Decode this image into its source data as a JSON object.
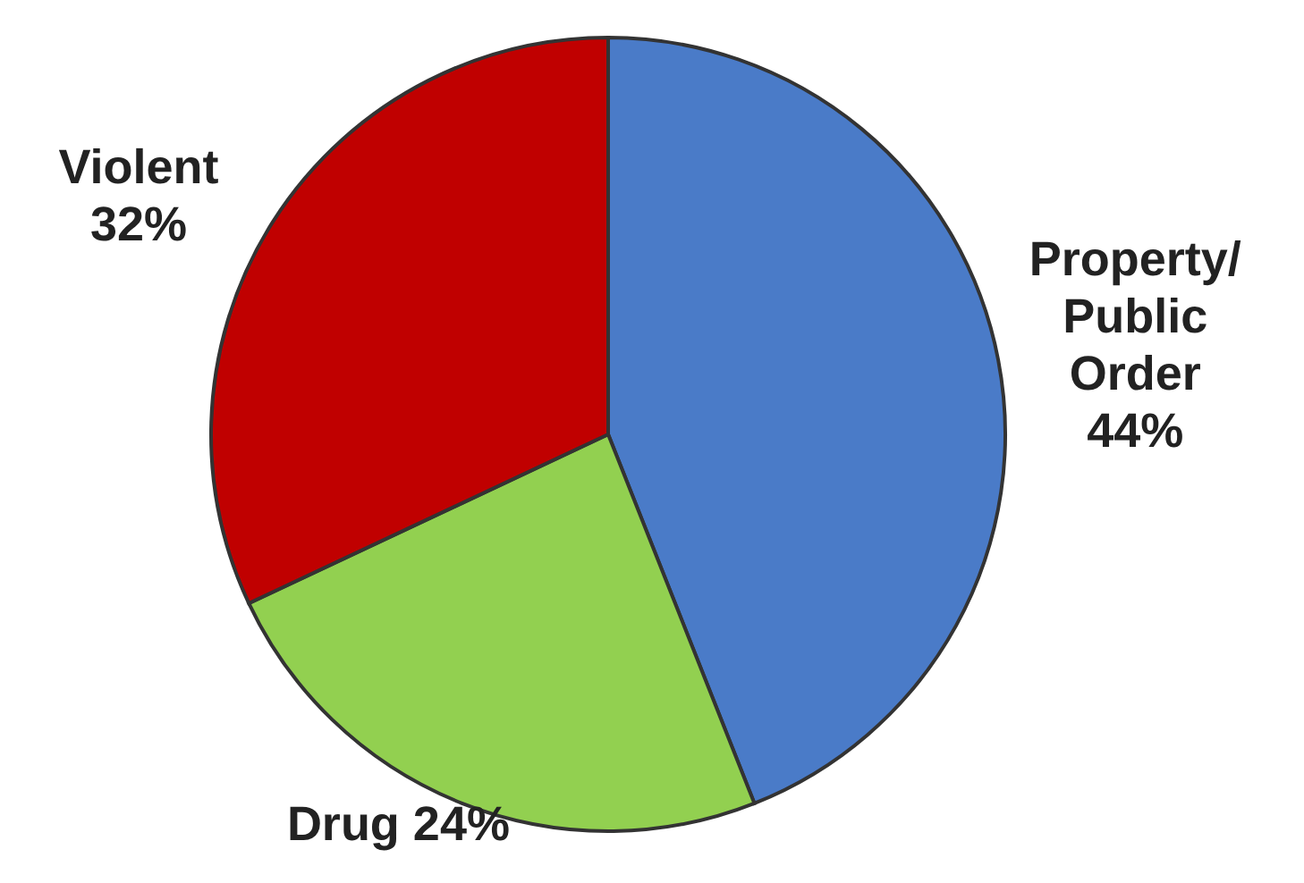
{
  "chart_data": {
    "type": "pie",
    "categories": [
      "Property/Public Order",
      "Drug",
      "Violent"
    ],
    "values": [
      44,
      24,
      32
    ],
    "colors": [
      "#4a7bc8",
      "#92d050",
      "#c00000"
    ],
    "value_labels": [
      "44%",
      "24%",
      "32%"
    ],
    "legend": false
  }
}
